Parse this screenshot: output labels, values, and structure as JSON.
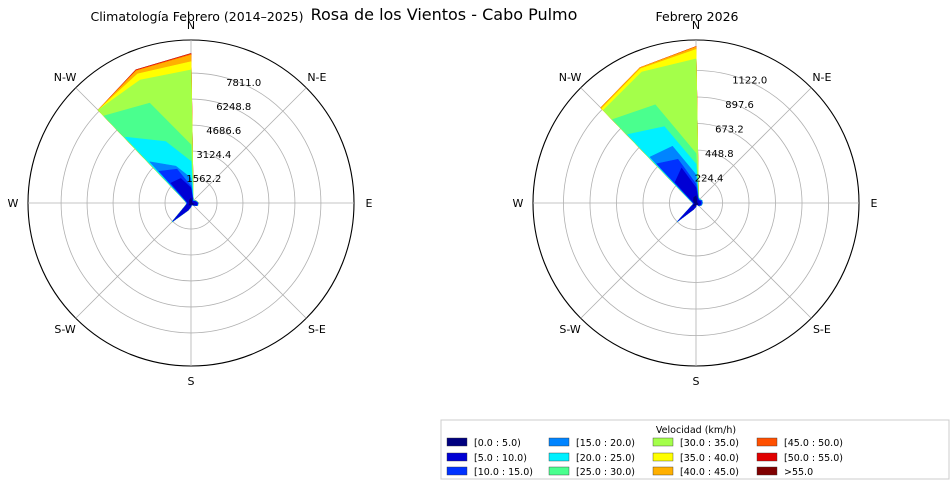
{
  "suptitle": "Rosa de los Vientos - Cabo Pulmo",
  "directions": [
    "N",
    "N-E",
    "E",
    "S-E",
    "S",
    "S-W",
    "W",
    "N-W"
  ],
  "legend": {
    "title": "Velocidad (km/h)",
    "bins": [
      {
        "label": "[0.0 : 5.0)",
        "color": "#00007f"
      },
      {
        "label": "[5.0 : 10.0)",
        "color": "#0000d4"
      },
      {
        "label": "[10.0 : 15.0)",
        "color": "#0032ff"
      },
      {
        "label": "[15.0 : 20.0)",
        "color": "#0084ff"
      },
      {
        "label": "[20.0 : 25.0)",
        "color": "#00f0ff"
      },
      {
        "label": "[25.0 : 30.0)",
        "color": "#4aff8e"
      },
      {
        "label": "[30.0 : 35.0)",
        "color": "#a4ff4a"
      },
      {
        "label": "[35.0 : 40.0)",
        "color": "#ffff00"
      },
      {
        "label": "[40.0 : 45.0)",
        "color": "#ffb000"
      },
      {
        "label": "[45.0 : 50.0)",
        "color": "#ff5000"
      },
      {
        "label": "[50.0 : 55.0)",
        "color": "#e00000"
      },
      {
        "label": ">55.0",
        "color": "#7f0000"
      }
    ]
  },
  "chart_data": [
    {
      "type": "windrose",
      "title": "Climatología Febrero (2014–2025)",
      "rlim": [
        0,
        9800
      ],
      "radial_ticks": [
        "1562.2",
        "3124.4",
        "4686.6",
        "6248.8",
        "7811.0"
      ],
      "radial_tick_values": [
        1562.2,
        3124.4,
        4686.6,
        6248.8,
        7811.0
      ],
      "radial_tick_angle_deg": 22.5,
      "angles_deg": [
        0,
        22.5,
        45,
        67.5,
        90,
        112.5,
        135,
        157.5,
        180,
        202.5,
        225,
        247.5,
        270,
        292.5,
        315,
        337.5
      ],
      "cumulative_series": [
        {
          "bin": "[0.0 : 5.0)",
          "values": [
            300,
            120,
            60,
            60,
            100,
            200,
            120,
            60,
            120,
            120,
            180,
            90,
            60,
            100,
            150,
            200
          ]
        },
        {
          "bin": "[5.0 : 10.0)",
          "values": [
            900,
            250,
            120,
            240,
            380,
            380,
            190,
            90,
            200,
            460,
            1500,
            300,
            200,
            300,
            1700,
            1600
          ]
        },
        {
          "bin": "[10.0 : 15.0)",
          "values": [
            1000,
            280,
            150,
            290,
            420,
            400,
            190,
            100,
            220,
            470,
            1560,
            310,
            230,
            360,
            2700,
            2200
          ]
        },
        {
          "bin": "[15.0 : 20.0)",
          "values": [
            1500,
            300,
            200,
            310,
            430,
            410,
            200,
            110,
            230,
            480,
            1580,
            320,
            250,
            400,
            3500,
            2400
          ]
        },
        {
          "bin": "[20.0 : 25.0)",
          "values": [
            2500,
            320,
            220,
            320,
            440,
            420,
            210,
            110,
            240,
            480,
            1600,
            330,
            260,
            420,
            5600,
            4000
          ]
        },
        {
          "bin": "[25.0 : 30.0)",
          "values": [
            3500,
            330,
            230,
            330,
            450,
            420,
            210,
            110,
            240,
            490,
            1610,
            330,
            260,
            430,
            7400,
            6500
          ]
        },
        {
          "bin": "[30.0 : 35.0)",
          "values": [
            8000,
            340,
            240,
            340,
            450,
            430,
            210,
            110,
            240,
            490,
            1620,
            330,
            260,
            430,
            7900,
            8000
          ]
        },
        {
          "bin": "[35.0 : 40.0)",
          "values": [
            8500,
            340,
            240,
            340,
            450,
            430,
            210,
            110,
            240,
            490,
            1620,
            330,
            260,
            430,
            7900,
            8400
          ]
        },
        {
          "bin": "[40.0 : 45.0)",
          "values": [
            8900,
            350,
            240,
            340,
            450,
            430,
            210,
            110,
            240,
            490,
            1620,
            330,
            260,
            430,
            7900,
            8600
          ]
        },
        {
          "bin": "[45.0 : 50.0)",
          "values": [
            8960,
            350,
            240,
            340,
            450,
            430,
            210,
            110,
            240,
            490,
            1620,
            330,
            260,
            430,
            7900,
            8640
          ]
        },
        {
          "bin": "[50.0 : 55.0)",
          "values": [
            8980,
            350,
            240,
            340,
            450,
            430,
            210,
            110,
            240,
            490,
            1620,
            330,
            260,
            430,
            7900,
            8660
          ]
        },
        {
          "bin": ">55.0",
          "values": [
            8990,
            350,
            240,
            340,
            450,
            430,
            210,
            110,
            240,
            490,
            1620,
            330,
            260,
            430,
            7900,
            8670
          ]
        }
      ]
    },
    {
      "type": "windrose",
      "title": "Febrero 2026",
      "rlim": [
        0,
        1380
      ],
      "radial_ticks": [
        "224.4",
        "448.8",
        "673.2",
        "897.6",
        "1122.0"
      ],
      "radial_tick_values": [
        224.4,
        448.8,
        673.2,
        897.6,
        1122.0
      ],
      "radial_tick_angle_deg": 22.5,
      "angles_deg": [
        0,
        22.5,
        45,
        67.5,
        90,
        112.5,
        135,
        157.5,
        180,
        202.5,
        225,
        247.5,
        270,
        292.5,
        315,
        337.5
      ],
      "cumulative_series": [
        {
          "bin": "[0.0 : 5.0)",
          "values": [
            60,
            20,
            10,
            10,
            10,
            20,
            20,
            10,
            20,
            20,
            40,
            10,
            10,
            20,
            30,
            50
          ]
        },
        {
          "bin": "[5.0 : 10.0)",
          "values": [
            130,
            40,
            30,
            40,
            40,
            40,
            30,
            10,
            30,
            60,
            210,
            20,
            20,
            30,
            250,
            320
          ]
        },
        {
          "bin": "[10.0 : 15.0)",
          "values": [
            160,
            45,
            35,
            50,
            50,
            45,
            30,
            10,
            30,
            60,
            220,
            25,
            25,
            40,
            470,
            400
          ]
        },
        {
          "bin": "[15.0 : 20.0)",
          "values": [
            240,
            50,
            40,
            55,
            55,
            50,
            35,
            10,
            30,
            60,
            225,
            25,
            25,
            45,
            550,
            520
          ]
        },
        {
          "bin": "[20.0 : 25.0)",
          "values": [
            330,
            50,
            45,
            55,
            55,
            50,
            35,
            10,
            30,
            60,
            225,
            25,
            25,
            50,
            820,
            700
          ]
        },
        {
          "bin": "[25.0 : 30.0)",
          "values": [
            420,
            55,
            45,
            55,
            55,
            50,
            35,
            10,
            30,
            60,
            225,
            25,
            25,
            50,
            1000,
            900
          ]
        },
        {
          "bin": "[30.0 : 35.0)",
          "values": [
            1220,
            55,
            45,
            55,
            55,
            50,
            35,
            10,
            30,
            60,
            225,
            25,
            25,
            50,
            1110,
            1200
          ]
        },
        {
          "bin": "[35.0 : 40.0)",
          "values": [
            1300,
            55,
            45,
            55,
            55,
            50,
            35,
            10,
            30,
            60,
            225,
            25,
            25,
            50,
            1130,
            1230
          ]
        },
        {
          "bin": "[40.0 : 45.0)",
          "values": [
            1320,
            55,
            45,
            55,
            55,
            50,
            35,
            10,
            30,
            60,
            225,
            25,
            25,
            50,
            1140,
            1240
          ]
        },
        {
          "bin": "[45.0 : 50.0)",
          "values": [
            1325,
            55,
            45,
            55,
            55,
            50,
            35,
            10,
            30,
            60,
            225,
            25,
            25,
            50,
            1140,
            1240
          ]
        },
        {
          "bin": "[50.0 : 55.0)",
          "values": [
            1325,
            55,
            45,
            55,
            55,
            50,
            35,
            10,
            30,
            60,
            225,
            25,
            25,
            50,
            1140,
            1240
          ]
        },
        {
          "bin": ">55.0",
          "values": [
            1325,
            55,
            45,
            55,
            55,
            50,
            35,
            10,
            30,
            60,
            225,
            25,
            25,
            50,
            1140,
            1240
          ]
        }
      ]
    }
  ]
}
